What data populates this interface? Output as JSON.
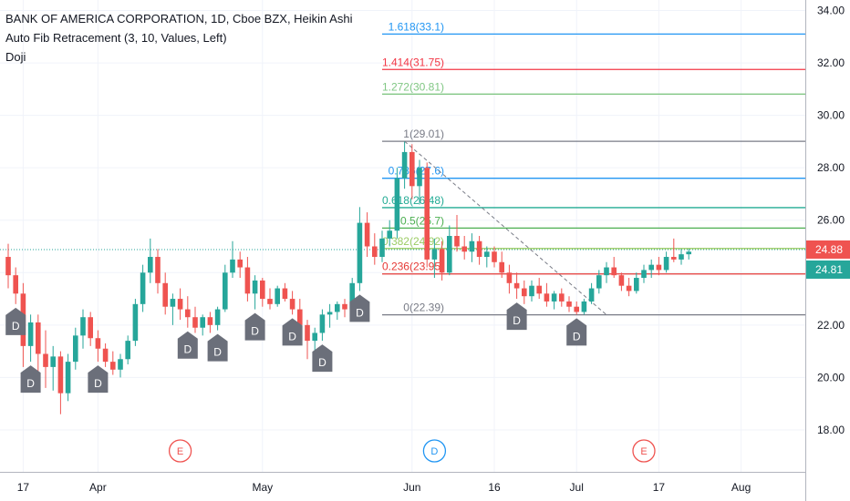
{
  "header": {
    "symbol": "BANK OF AMERICA CORPORATION, 1D, Cboe BZX, Heikin Ashi",
    "indicator_fib": "Auto Fib Retracement (3, 10, Values, Left)",
    "indicator_doji": "Doji"
  },
  "colors": {
    "up": "#26a69a",
    "down": "#ef5350",
    "doji_marker": "#6b6f7a",
    "grid": "#f0f3fa",
    "price_line": "#26a69a"
  },
  "chart_data": {
    "type": "candlestick",
    "style": "Heikin Ashi",
    "interval": "1D",
    "ylim": [
      16.4,
      34.4
    ],
    "y_ticks": [
      "18.00",
      "20.00",
      "22.00",
      "24.00",
      "26.00",
      "28.00",
      "30.00",
      "32.00",
      "34.00"
    ],
    "x_ticks": [
      {
        "label": "17",
        "index": 2
      },
      {
        "label": "Apr",
        "index": 12
      },
      {
        "label": "May",
        "index": 34
      },
      {
        "label": "Jun",
        "index": 54
      },
      {
        "label": "16",
        "index": 65
      },
      {
        "label": "Jul",
        "index": 76
      },
      {
        "label": "17",
        "index": 87
      },
      {
        "label": "Aug",
        "index": 98
      }
    ],
    "candles": [
      {
        "o": 24.6,
        "h": 25.1,
        "l": 23.4,
        "c": 23.9
      },
      {
        "o": 23.9,
        "h": 24.2,
        "l": 22.8,
        "c": 23.2
      },
      {
        "o": 23.2,
        "h": 23.6,
        "l": 20.4,
        "c": 21.2
      },
      {
        "o": 21.2,
        "h": 22.4,
        "l": 20.6,
        "c": 22.1
      },
      {
        "o": 22.1,
        "h": 22.4,
        "l": 20.2,
        "c": 20.9
      },
      {
        "o": 20.9,
        "h": 21.8,
        "l": 19.6,
        "c": 20.4
      },
      {
        "o": 20.4,
        "h": 21.2,
        "l": 19.5,
        "c": 20.8
      },
      {
        "o": 20.8,
        "h": 21.0,
        "l": 18.6,
        "c": 19.4
      },
      {
        "o": 19.4,
        "h": 20.9,
        "l": 19.1,
        "c": 20.6
      },
      {
        "o": 20.6,
        "h": 21.9,
        "l": 20.3,
        "c": 21.6
      },
      {
        "o": 21.6,
        "h": 22.6,
        "l": 21.1,
        "c": 22.3
      },
      {
        "o": 22.3,
        "h": 22.5,
        "l": 21.2,
        "c": 21.5
      },
      {
        "o": 21.5,
        "h": 21.8,
        "l": 20.6,
        "c": 21.1
      },
      {
        "o": 21.1,
        "h": 21.3,
        "l": 20.4,
        "c": 20.6
      },
      {
        "o": 20.6,
        "h": 21.0,
        "l": 20.1,
        "c": 20.3
      },
      {
        "o": 20.3,
        "h": 20.9,
        "l": 20.0,
        "c": 20.7
      },
      {
        "o": 20.7,
        "h": 21.6,
        "l": 20.5,
        "c": 21.4
      },
      {
        "o": 21.4,
        "h": 23.0,
        "l": 21.2,
        "c": 22.8
      },
      {
        "o": 22.8,
        "h": 24.3,
        "l": 22.5,
        "c": 24.0
      },
      {
        "o": 24.0,
        "h": 25.3,
        "l": 23.6,
        "c": 24.6
      },
      {
        "o": 24.6,
        "h": 24.9,
        "l": 23.2,
        "c": 23.6
      },
      {
        "o": 23.6,
        "h": 24.0,
        "l": 22.4,
        "c": 22.7
      },
      {
        "o": 22.7,
        "h": 23.2,
        "l": 22.0,
        "c": 23.0
      },
      {
        "o": 23.0,
        "h": 23.4,
        "l": 22.2,
        "c": 22.6
      },
      {
        "o": 22.6,
        "h": 23.1,
        "l": 21.9,
        "c": 22.3
      },
      {
        "o": 22.3,
        "h": 22.7,
        "l": 21.7,
        "c": 21.9
      },
      {
        "o": 21.9,
        "h": 22.4,
        "l": 21.6,
        "c": 22.3
      },
      {
        "o": 22.3,
        "h": 22.5,
        "l": 21.7,
        "c": 22.0
      },
      {
        "o": 22.0,
        "h": 22.7,
        "l": 21.8,
        "c": 22.6
      },
      {
        "o": 22.6,
        "h": 24.3,
        "l": 22.5,
        "c": 24.0
      },
      {
        "o": 24.0,
        "h": 25.2,
        "l": 23.8,
        "c": 24.5
      },
      {
        "o": 24.5,
        "h": 24.8,
        "l": 23.8,
        "c": 24.2
      },
      {
        "o": 24.2,
        "h": 24.6,
        "l": 22.9,
        "c": 23.2
      },
      {
        "o": 23.2,
        "h": 23.9,
        "l": 22.6,
        "c": 23.7
      },
      {
        "o": 23.7,
        "h": 23.8,
        "l": 22.7,
        "c": 23.0
      },
      {
        "o": 23.0,
        "h": 23.4,
        "l": 22.6,
        "c": 22.8
      },
      {
        "o": 22.8,
        "h": 23.5,
        "l": 22.7,
        "c": 23.4
      },
      {
        "o": 23.4,
        "h": 23.6,
        "l": 22.9,
        "c": 23.0
      },
      {
        "o": 23.0,
        "h": 23.3,
        "l": 22.4,
        "c": 22.6
      },
      {
        "o": 22.6,
        "h": 23.0,
        "l": 21.7,
        "c": 22.0
      },
      {
        "o": 22.0,
        "h": 22.2,
        "l": 20.7,
        "c": 21.4
      },
      {
        "o": 21.4,
        "h": 21.9,
        "l": 20.4,
        "c": 21.7
      },
      {
        "o": 21.7,
        "h": 22.6,
        "l": 21.4,
        "c": 22.4
      },
      {
        "o": 22.4,
        "h": 22.8,
        "l": 21.9,
        "c": 22.5
      },
      {
        "o": 22.5,
        "h": 22.9,
        "l": 22.2,
        "c": 22.8
      },
      {
        "o": 22.8,
        "h": 23.0,
        "l": 22.3,
        "c": 22.6
      },
      {
        "o": 22.6,
        "h": 23.8,
        "l": 22.4,
        "c": 23.6
      },
      {
        "o": 23.6,
        "h": 26.5,
        "l": 23.3,
        "c": 25.9
      },
      {
        "o": 25.9,
        "h": 26.3,
        "l": 24.6,
        "c": 25.0
      },
      {
        "o": 25.0,
        "h": 25.5,
        "l": 24.3,
        "c": 24.6
      },
      {
        "o": 24.6,
        "h": 25.6,
        "l": 24.4,
        "c": 25.3
      },
      {
        "o": 25.3,
        "h": 26.0,
        "l": 25.0,
        "c": 25.6
      },
      {
        "o": 25.6,
        "h": 28.0,
        "l": 25.3,
        "c": 27.6
      },
      {
        "o": 27.6,
        "h": 29.0,
        "l": 27.2,
        "c": 28.6
      },
      {
        "o": 28.6,
        "h": 28.9,
        "l": 26.8,
        "c": 27.3
      },
      {
        "o": 27.3,
        "h": 28.3,
        "l": 26.6,
        "c": 28.0
      },
      {
        "o": 28.0,
        "h": 28.2,
        "l": 24.2,
        "c": 24.5
      },
      {
        "o": 24.5,
        "h": 25.3,
        "l": 23.8,
        "c": 24.9
      },
      {
        "o": 24.9,
        "h": 25.2,
        "l": 23.7,
        "c": 24.0
      },
      {
        "o": 24.0,
        "h": 25.8,
        "l": 23.9,
        "c": 25.4
      },
      {
        "o": 25.4,
        "h": 26.2,
        "l": 24.8,
        "c": 25.0
      },
      {
        "o": 25.0,
        "h": 25.4,
        "l": 24.5,
        "c": 24.8
      },
      {
        "o": 24.8,
        "h": 25.5,
        "l": 24.4,
        "c": 25.2
      },
      {
        "o": 25.2,
        "h": 25.4,
        "l": 24.3,
        "c": 24.6
      },
      {
        "o": 24.6,
        "h": 25.0,
        "l": 24.2,
        "c": 24.8
      },
      {
        "o": 24.8,
        "h": 25.0,
        "l": 24.2,
        "c": 24.4
      },
      {
        "o": 24.4,
        "h": 24.8,
        "l": 23.8,
        "c": 24.0
      },
      {
        "o": 24.0,
        "h": 24.3,
        "l": 23.2,
        "c": 23.6
      },
      {
        "o": 23.6,
        "h": 24.0,
        "l": 23.0,
        "c": 23.4
      },
      {
        "o": 23.4,
        "h": 23.7,
        "l": 22.8,
        "c": 23.1
      },
      {
        "o": 23.1,
        "h": 23.7,
        "l": 22.9,
        "c": 23.5
      },
      {
        "o": 23.5,
        "h": 23.8,
        "l": 23.0,
        "c": 23.2
      },
      {
        "o": 23.2,
        "h": 23.6,
        "l": 22.7,
        "c": 22.9
      },
      {
        "o": 22.9,
        "h": 23.3,
        "l": 22.6,
        "c": 23.2
      },
      {
        "o": 23.2,
        "h": 23.4,
        "l": 22.7,
        "c": 22.9
      },
      {
        "o": 22.9,
        "h": 23.1,
        "l": 22.5,
        "c": 22.7
      },
      {
        "o": 22.7,
        "h": 22.9,
        "l": 22.4,
        "c": 22.5
      },
      {
        "o": 22.5,
        "h": 23.0,
        "l": 22.4,
        "c": 22.9
      },
      {
        "o": 22.9,
        "h": 23.6,
        "l": 22.8,
        "c": 23.4
      },
      {
        "o": 23.4,
        "h": 24.1,
        "l": 23.2,
        "c": 23.9
      },
      {
        "o": 23.9,
        "h": 24.4,
        "l": 23.6,
        "c": 24.2
      },
      {
        "o": 24.2,
        "h": 24.6,
        "l": 23.8,
        "c": 23.9
      },
      {
        "o": 23.9,
        "h": 24.0,
        "l": 23.3,
        "c": 23.5
      },
      {
        "o": 23.5,
        "h": 23.8,
        "l": 23.1,
        "c": 23.3
      },
      {
        "o": 23.3,
        "h": 24.0,
        "l": 23.2,
        "c": 23.8
      },
      {
        "o": 23.8,
        "h": 24.3,
        "l": 23.6,
        "c": 24.1
      },
      {
        "o": 24.1,
        "h": 24.5,
        "l": 23.8,
        "c": 24.3
      },
      {
        "o": 24.3,
        "h": 24.6,
        "l": 23.9,
        "c": 24.1
      },
      {
        "o": 24.1,
        "h": 24.8,
        "l": 24.0,
        "c": 24.6
      },
      {
        "o": 24.6,
        "h": 25.3,
        "l": 24.4,
        "c": 24.5
      },
      {
        "o": 24.5,
        "h": 24.9,
        "l": 24.3,
        "c": 24.7
      },
      {
        "o": 24.7,
        "h": 24.9,
        "l": 24.5,
        "c": 24.8
      }
    ],
    "fib_levels": [
      {
        "ratio": "1.618",
        "value": 33.1,
        "text": "1.618(33.1)",
        "color": "#2196f3"
      },
      {
        "ratio": "1.414",
        "value": 31.75,
        "text": "1.414(31.75)",
        "color": "#f23645"
      },
      {
        "ratio": "1.272",
        "value": 30.81,
        "text": "1.272(30.81)",
        "color": "#81c784"
      },
      {
        "ratio": "1",
        "value": 29.01,
        "text": "1(29.01)",
        "color": "#787b86"
      },
      {
        "ratio": "0.786",
        "value": 27.6,
        "text": "0.786(27.6)",
        "color": "#2196f3"
      },
      {
        "ratio": "0.618",
        "value": 26.48,
        "text": "0.618(26.48)",
        "color": "#22ab94"
      },
      {
        "ratio": "0.5",
        "value": 25.7,
        "text": "0.5(25.7)",
        "color": "#4caf50"
      },
      {
        "ratio": "0.382",
        "value": 24.92,
        "text": "0.382(24.92)",
        "color": "#9ccc65"
      },
      {
        "ratio": "0.236",
        "value": 23.95,
        "text": "0.236(23.95)",
        "color": "#e53935"
      },
      {
        "ratio": "0",
        "value": 22.39,
        "text": "0(22.39)",
        "color": "#787b86"
      }
    ],
    "fib_trendline": {
      "from_index": 53,
      "from_value": 29.01,
      "to_index": 80,
      "to_value": 22.39
    },
    "doji_markers": [
      {
        "index": 1,
        "label": "D"
      },
      {
        "index": 3,
        "label": "D"
      },
      {
        "index": 12,
        "label": "D"
      },
      {
        "index": 24,
        "label": "D"
      },
      {
        "index": 28,
        "label": "D"
      },
      {
        "index": 33,
        "label": "D"
      },
      {
        "index": 38,
        "label": "D"
      },
      {
        "index": 42,
        "label": "D"
      },
      {
        "index": 47,
        "label": "D"
      },
      {
        "index": 68,
        "label": "D"
      },
      {
        "index": 76,
        "label": "D"
      }
    ],
    "events": [
      {
        "index": 23,
        "label": "E",
        "color": "#ef5350"
      },
      {
        "index": 57,
        "label": "D",
        "color": "#2196f3"
      },
      {
        "index": 85,
        "label": "E",
        "color": "#ef5350"
      }
    ],
    "price_badges": [
      {
        "value": 24.88,
        "text": "24.88",
        "color": "#ef5350"
      },
      {
        "value": 24.81,
        "text": "24.81",
        "color": "#26a69a"
      }
    ],
    "last_price_line": 24.88
  }
}
